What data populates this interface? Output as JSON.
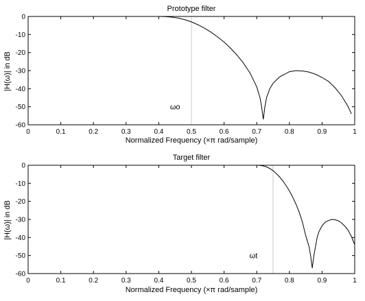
{
  "chart_data": [
    {
      "type": "line",
      "title": "Prototype filter",
      "xlabel": "Normalized Frequency  (×π rad/sample)",
      "ylabel": "|H(ω)| in dB",
      "xlim": [
        0,
        1
      ],
      "ylim": [
        -60,
        0
      ],
      "xticks": [
        0,
        0.1,
        0.2,
        0.3,
        0.4,
        0.5,
        0.6,
        0.7,
        0.8,
        0.9,
        1
      ],
      "yticks": [
        0,
        -10,
        -20,
        -30,
        -40,
        -50,
        -60
      ],
      "xtick_labels": [
        "0",
        "0.1",
        "0.2",
        "0.3",
        "0.4",
        "0.5",
        "0.6",
        "0.7",
        "0.8",
        "0.9",
        "1"
      ],
      "ytick_labels": [
        "0",
        "-10",
        "-20",
        "-30",
        "-40",
        "-50",
        "-60"
      ],
      "grid": false,
      "annotation": {
        "text": "ωo",
        "x": 0.45,
        "y": -50
      },
      "marker_x": 0.5,
      "series": [
        {
          "x": [
            0,
            0.4,
            0.42,
            0.44,
            0.46,
            0.48,
            0.5,
            0.52,
            0.54,
            0.56,
            0.58,
            0.6,
            0.62,
            0.64,
            0.66,
            0.68,
            0.7,
            0.71,
            0.715,
            0.72,
            0.725,
            0.73,
            0.74,
            0.75,
            0.77,
            0.8,
            0.82,
            0.84,
            0.86,
            0.88,
            0.9,
            0.92,
            0.94,
            0.96,
            0.98,
            0.99
          ],
          "y": [
            0,
            0,
            -0.1,
            -0.4,
            -0.9,
            -1.8,
            -3,
            -4.6,
            -6.5,
            -8.7,
            -11.3,
            -14.2,
            -17.6,
            -21.5,
            -26,
            -31.5,
            -39,
            -45,
            -50,
            -57,
            -50,
            -45,
            -40,
            -37,
            -33.5,
            -30.6,
            -30,
            -30.2,
            -30.8,
            -32,
            -33.8,
            -36,
            -39.5,
            -44,
            -50,
            -54
          ]
        }
      ]
    },
    {
      "type": "line",
      "title": "Target filter",
      "xlabel": "Normalized Frequency  (×π rad/sample)",
      "ylabel": "|H(ω)| in dB",
      "xlim": [
        0,
        1
      ],
      "ylim": [
        -60,
        0
      ],
      "xticks": [
        0,
        0.1,
        0.2,
        0.3,
        0.4,
        0.5,
        0.6,
        0.7,
        0.8,
        0.9,
        1
      ],
      "yticks": [
        0,
        -10,
        -20,
        -30,
        -40,
        -50,
        -60
      ],
      "xtick_labels": [
        "0",
        "0.1",
        "0.2",
        "0.3",
        "0.4",
        "0.5",
        "0.6",
        "0.7",
        "0.8",
        "0.9",
        "1"
      ],
      "ytick_labels": [
        "0",
        "-10",
        "-20",
        "-30",
        "-40",
        "-50",
        "-60"
      ],
      "grid": false,
      "annotation": {
        "text": "ωt",
        "x": 0.69,
        "y": -50
      },
      "marker_x": 0.75,
      "series": [
        {
          "x": [
            0,
            0.7,
            0.71,
            0.72,
            0.73,
            0.74,
            0.75,
            0.76,
            0.77,
            0.78,
            0.79,
            0.8,
            0.81,
            0.82,
            0.83,
            0.84,
            0.85,
            0.86,
            0.865,
            0.87,
            0.875,
            0.88,
            0.885,
            0.89,
            0.9,
            0.91,
            0.92,
            0.93,
            0.94,
            0.95,
            0.96,
            0.97,
            0.98,
            0.99,
            1.0
          ],
          "y": [
            0,
            0,
            -0.1,
            -0.4,
            -0.9,
            -1.8,
            -3,
            -4.6,
            -6.5,
            -8.7,
            -11.3,
            -14.2,
            -17.6,
            -21.5,
            -26,
            -31.5,
            -39,
            -45,
            -50,
            -57,
            -50,
            -45,
            -40,
            -37,
            -33.5,
            -31.5,
            -30.6,
            -30,
            -30.2,
            -30.8,
            -32,
            -33.8,
            -36,
            -39.5,
            -44
          ]
        }
      ]
    }
  ]
}
